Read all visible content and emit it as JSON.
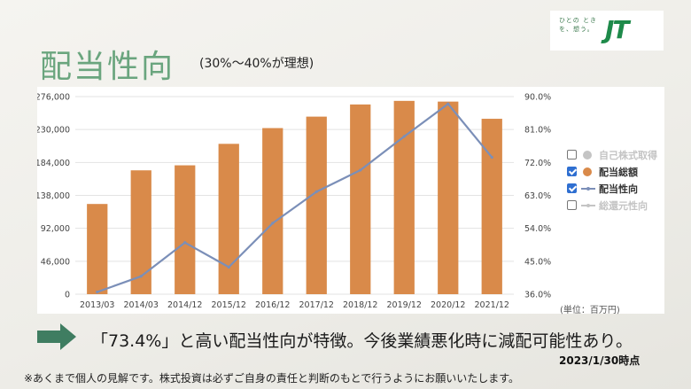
{
  "page": {
    "title": "配当性向",
    "subtitle": "(30%〜40%が理想)",
    "logo_text": "ひとの ときを、想う。",
    "logo_mark": "JT",
    "comment": "「73.4%」と高い配当性向が特徴。今後業績悪化時に減配可能性あり。",
    "date_note": "2023/1/30時点",
    "footnote": "※あくまで個人の見解です。株式投資は必ずご自身の責任と判断のもとで行うようにお願いいたします。",
    "unit_label": "(単位：百万円)"
  },
  "colors": {
    "bar": "#d98a4a",
    "line": "#7b8fb8",
    "grid": "#e3e3e3",
    "title": "#6aa57e",
    "arrow": "#3f7d61",
    "checkbox": "#2f6fd1"
  },
  "legend": [
    {
      "label": "自己株式取得",
      "checked": false,
      "symbol": "circle",
      "color": "#c4c4c4",
      "dim": true
    },
    {
      "label": "配当総額",
      "checked": true,
      "symbol": "circle",
      "color": "#d98a4a",
      "dim": false
    },
    {
      "label": "配当性向",
      "checked": true,
      "symbol": "line",
      "color": "#7b8fb8",
      "dim": false
    },
    {
      "label": "総還元性向",
      "checked": false,
      "symbol": "line",
      "color": "#c4c4c4",
      "dim": true
    }
  ],
  "chart_data": {
    "type": "bar",
    "categories": [
      "2013/03",
      "2014/03",
      "2014/12",
      "2015/12",
      "2016/12",
      "2017/12",
      "2018/12",
      "2019/12",
      "2020/12",
      "2021/12"
    ],
    "series": [
      {
        "name": "配当総額",
        "type": "bar",
        "axis": "left",
        "values": [
          126000,
          173000,
          180000,
          210000,
          232000,
          248000,
          265000,
          270000,
          269000,
          245000
        ]
      },
      {
        "name": "配当性向",
        "type": "line",
        "axis": "right",
        "values": [
          36.6,
          40.9,
          50.1,
          43.4,
          55.4,
          64.0,
          69.9,
          79.1,
          88.0,
          73.4
        ]
      }
    ],
    "left_axis": {
      "ticks": [
        0,
        46000,
        92000,
        138000,
        184000,
        230000,
        276000
      ],
      "tick_labels": [
        "0",
        "46,000",
        "92,000",
        "138,000",
        "184,000",
        "230,000",
        "276,000"
      ],
      "ylim": [
        0,
        276000
      ]
    },
    "right_axis": {
      "ticks": [
        36,
        45,
        54,
        63,
        72,
        81,
        90
      ],
      "tick_labels": [
        "36.0%",
        "45.0%",
        "54.0%",
        "63.0%",
        "72.0%",
        "81.0%",
        "90.0%"
      ],
      "ylim": [
        36,
        90
      ]
    },
    "grid": true,
    "legend_position": "right"
  }
}
